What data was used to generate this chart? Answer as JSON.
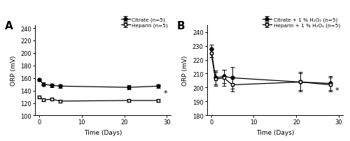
{
  "panel_A": {
    "panel_label": "A",
    "xlabel": "Time (Days)",
    "ylabel": "ORP (mV)",
    "ylim": [
      100,
      245
    ],
    "yticks": [
      100,
      120,
      140,
      160,
      180,
      200,
      220,
      240
    ],
    "xlim": [
      -1,
      31
    ],
    "xticks": [
      0,
      10,
      20,
      30
    ],
    "citrate": {
      "x": [
        0,
        1,
        3,
        5,
        21,
        28
      ],
      "y": [
        157,
        150,
        148,
        147,
        145,
        147
      ],
      "yerr": [
        2,
        3,
        3,
        3,
        3,
        3
      ],
      "label": "Citrate (n=5)"
    },
    "heparin": {
      "x": [
        0,
        1,
        3,
        5,
        21,
        28
      ],
      "y": [
        130,
        125,
        126,
        123,
        124,
        124
      ],
      "yerr": [
        2,
        2,
        2,
        2,
        2,
        2
      ],
      "label": "Heparin (n=5)"
    },
    "star_x": 29.2,
    "star_y": 136
  },
  "panel_B": {
    "panel_label": "B",
    "xlabel": "Time (Days)",
    "ylabel": "ORP (mV)",
    "ylim": [
      180,
      245
    ],
    "yticks": [
      180,
      190,
      200,
      210,
      220,
      230,
      240
    ],
    "xlim": [
      -1,
      31
    ],
    "xticks": [
      0,
      10,
      20,
      30
    ],
    "citrate": {
      "x": [
        0,
        1,
        3,
        5,
        21,
        28
      ],
      "y": [
        228,
        207,
        208,
        207,
        204,
        203
      ],
      "yerr": [
        3,
        5,
        5,
        8,
        6,
        5
      ],
      "label": "Citrate + 1 % H₂O₂ (n=5)"
    },
    "heparin": {
      "x": [
        0,
        1,
        3,
        5,
        21,
        28
      ],
      "y": [
        225,
        206,
        207,
        202,
        204,
        202
      ],
      "yerr": [
        3,
        5,
        6,
        5,
        7,
        5
      ],
      "label": "Heparin + 1 % H₂O₂ (n=5)"
    },
    "star_x": 29.2,
    "star_y": 198
  }
}
